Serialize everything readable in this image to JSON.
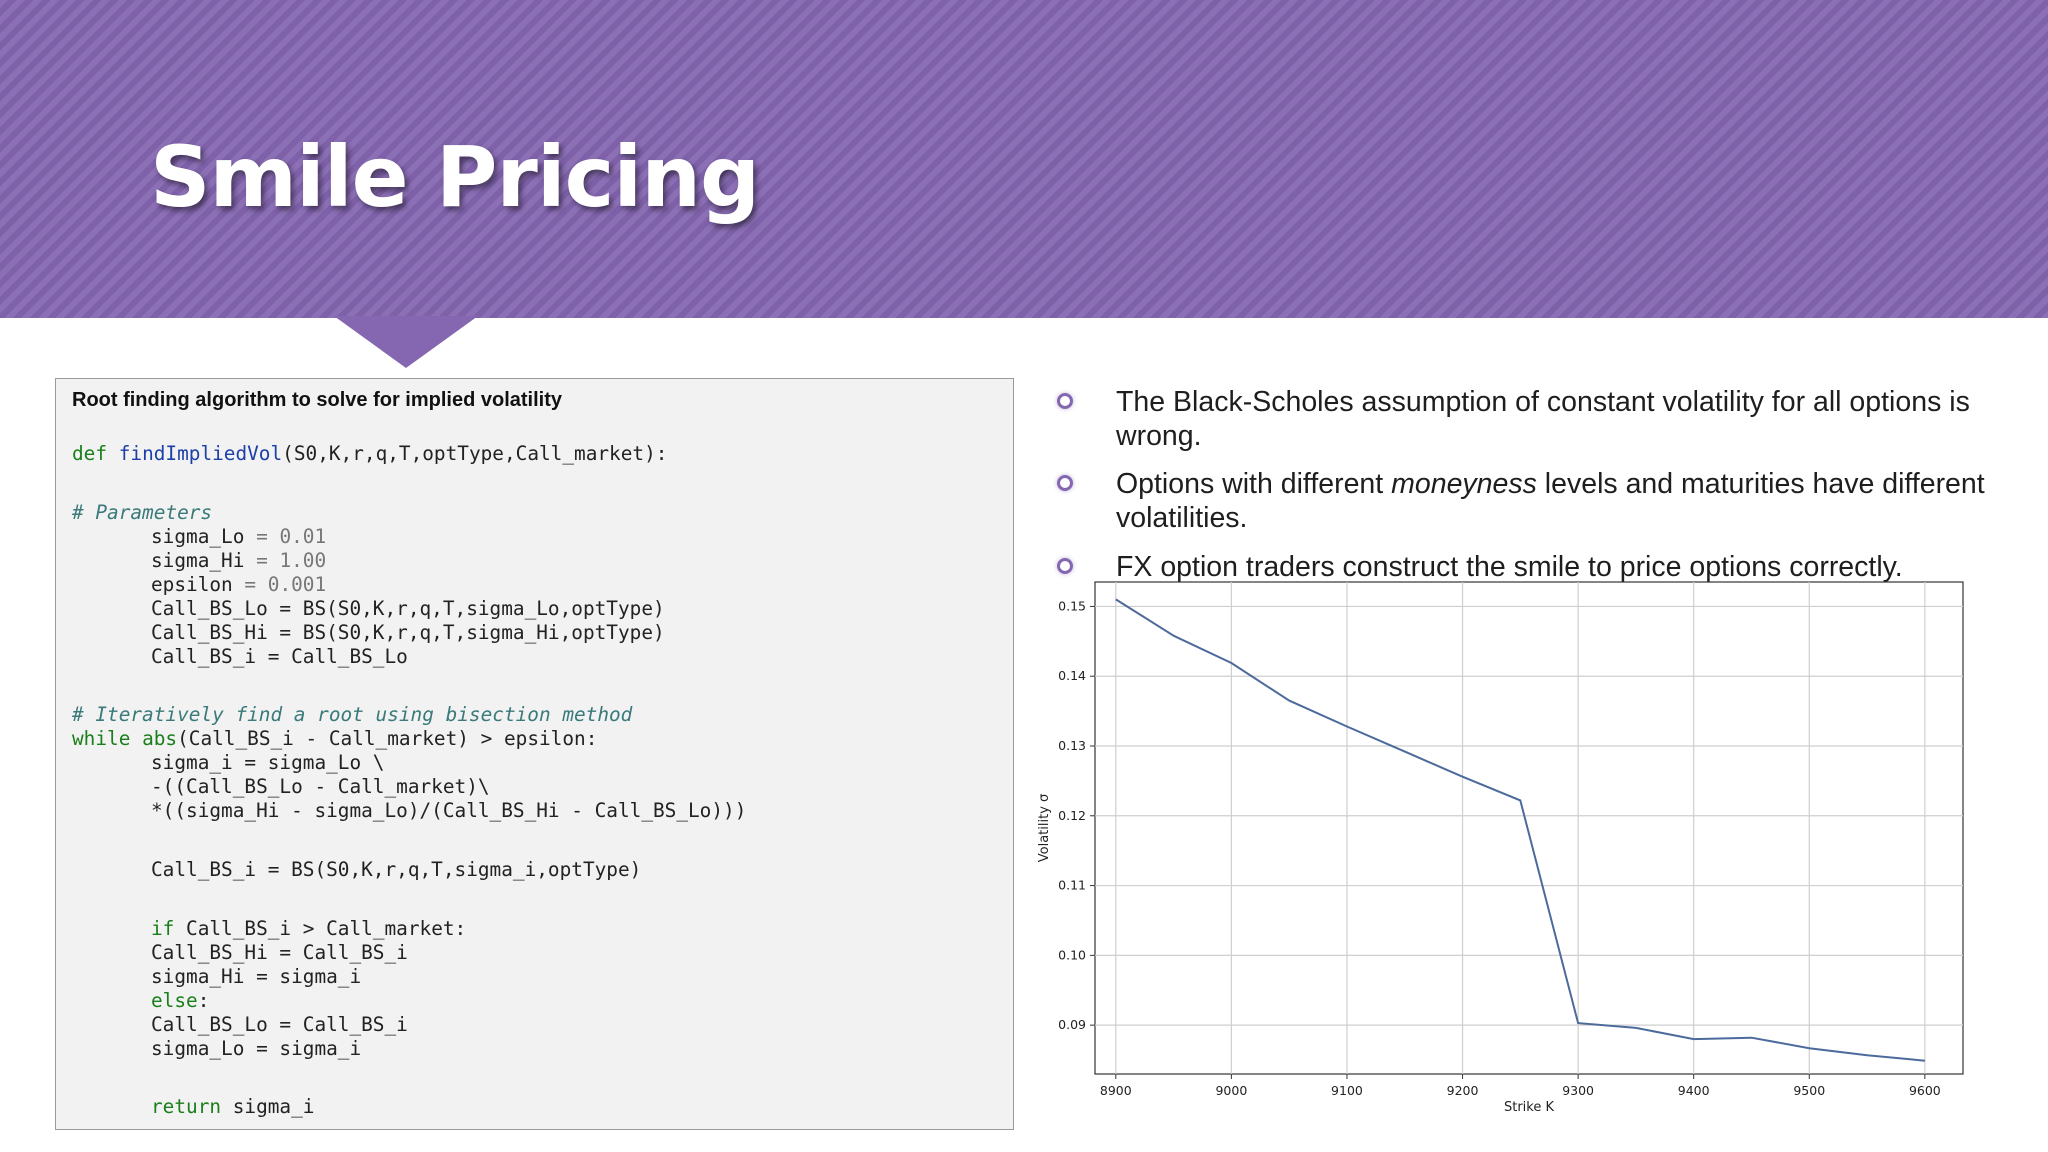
{
  "slide": {
    "title": "Smile Pricing",
    "accent_color": "#8467b0"
  },
  "code_panel": {
    "heading": "Root finding algorithm to solve for implied volatility",
    "lines": {
      "def_kw": "def",
      "def_name": "findImpliedVol",
      "def_args": "(S0,K,r,q,T,optType,Call_market):",
      "params_comment": "# Parameters",
      "sigma_lo_name": "sigma_Lo",
      "sigma_lo_val": "0.01",
      "sigma_hi_name": "sigma_Hi",
      "sigma_hi_val": "1.00",
      "epsilon_name": "epsilon",
      "epsilon_val": "0.001",
      "call_lo_line": "Call_BS_Lo = BS(S0,K,r,q,T,sigma_Lo,optType)",
      "call_hi_line": "Call_BS_Hi = BS(S0,K,r,q,T,sigma_Hi,optType)",
      "call_i_line": "Call_BS_i = Call_BS_Lo",
      "iter_comment": "# Iteratively find a root using bisection method",
      "while_kw": "while",
      "abs_fn": "abs",
      "while_rest": "(Call_BS_i - Call_market) > epsilon:",
      "sigma_i_line": "sigma_i = sigma_Lo \\",
      "minus_line": "-((Call_BS_Lo - Call_market)\\",
      "times_line": "*((sigma_Hi - sigma_Lo)/(Call_BS_Hi - Call_BS_Lo)))",
      "call_bs_i_line": "Call_BS_i = BS(S0,K,r,q,T,sigma_i,optType)",
      "if_kw": "if",
      "if_rest": " Call_BS_i > Call_market:",
      "hi_assign": "Call_BS_Hi = Call_BS_i",
      "sigma_hi_assign": "sigma_Hi = sigma_i",
      "else_kw": "else",
      "else_colon": ":",
      "lo_assign": "Call_BS_Lo = Call_BS_i",
      "sigma_lo_assign": "sigma_Lo = sigma_i",
      "return_kw": "return",
      "return_rest": " sigma_i"
    }
  },
  "bullets": [
    {
      "text": "The Black-Scholes assumption of constant volatility for all options is wrong."
    },
    {
      "text_pre": "Options with different ",
      "text_em": "moneyness",
      "text_post": " levels and maturities have different volatilities."
    },
    {
      "text": "FX option traders construct the smile to price options correctly."
    }
  ],
  "chart_data": {
    "type": "line",
    "xlabel": "Strike K",
    "ylabel": "Volatility σ",
    "x": [
      8900,
      8950,
      9000,
      9050,
      9100,
      9150,
      9200,
      9250,
      9300,
      9350,
      9400,
      9450,
      9500,
      9550,
      9600
    ],
    "series": [
      {
        "values": [
          0.151,
          0.1458,
          0.1419,
          0.1365,
          0.1328,
          0.1292,
          0.1256,
          0.1222,
          0.0903,
          0.0896,
          0.088,
          0.0882,
          0.0867,
          0.0857,
          0.0849
        ]
      }
    ],
    "xlim": [
      8882,
      9633
    ],
    "ylim": [
      0.083,
      0.1535
    ],
    "xticks": [
      8900,
      9000,
      9100,
      9200,
      9300,
      9400,
      9500,
      9600
    ],
    "yticks": [
      0.09,
      0.1,
      0.11,
      0.12,
      0.13,
      0.14,
      0.15
    ],
    "grid": true,
    "line_color": "#4c6a9c"
  }
}
